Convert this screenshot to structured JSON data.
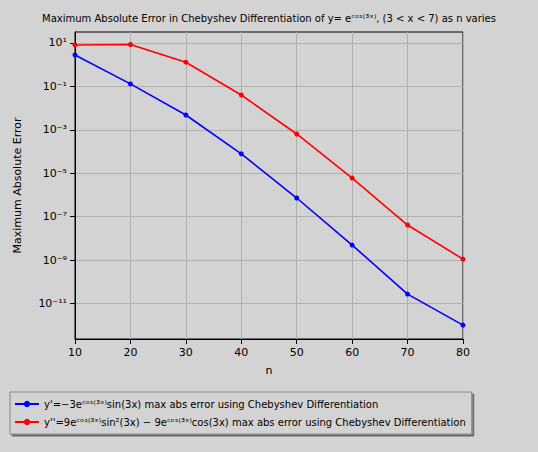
{
  "chart_data": {
    "type": "line",
    "title": "Maximum Absolute Error in Chebyshev Differentiation of y= eᶜᵒˢ⁽³ˣ⁾, (3 < x < 7) as n varies",
    "x_label": "n",
    "y_label": "Maximum Absolute Error",
    "x": [
      10,
      20,
      30,
      40,
      50,
      60,
      70,
      80
    ],
    "series": [
      {
        "name": "y'=−3eᶜᵒˢ⁽³ˣ⁾sin(3x) max abs error using Chebyshev Differentiation",
        "color": "#0000ff",
        "marker": "circle",
        "line_style": "solid",
        "values": [
          2.8,
          0.13,
          0.0048,
          7.8e-05,
          7.2e-07,
          4.9e-09,
          2.7e-11,
          1e-12
        ]
      },
      {
        "name": "y''=9eᶜᵒˢ⁽³ˣ⁾sin²(3x) − 9eᶜᵒˢ⁽³ˣ⁾cos(3x) max abs error using Chebyshev Differentiation",
        "color": "#ff0000",
        "marker": "circle",
        "line_style": "solid",
        "values": [
          8.1,
          8.5,
          1.3,
          0.04,
          0.00064,
          6e-06,
          4.1e-08,
          1.1e-09
        ]
      }
    ],
    "xlim": [
      10,
      80
    ],
    "xticks": [
      10,
      20,
      30,
      40,
      50,
      60,
      70,
      80
    ],
    "ylim": [
      2.3e-13,
      32
    ],
    "yticks": [
      {
        "value": 10,
        "label": "10¹"
      },
      {
        "value": 0.1,
        "label": "10⁻¹"
      },
      {
        "value": 0.001,
        "label": "10⁻³"
      },
      {
        "value": 1e-05,
        "label": "10⁻⁵"
      },
      {
        "value": 1e-07,
        "label": "10⁻⁷"
      },
      {
        "value": 1e-09,
        "label": "10⁻⁹"
      },
      {
        "value": 1e-11,
        "label": "10⁻¹¹"
      }
    ],
    "log": "y",
    "grid": true,
    "legend": "bottom"
  }
}
